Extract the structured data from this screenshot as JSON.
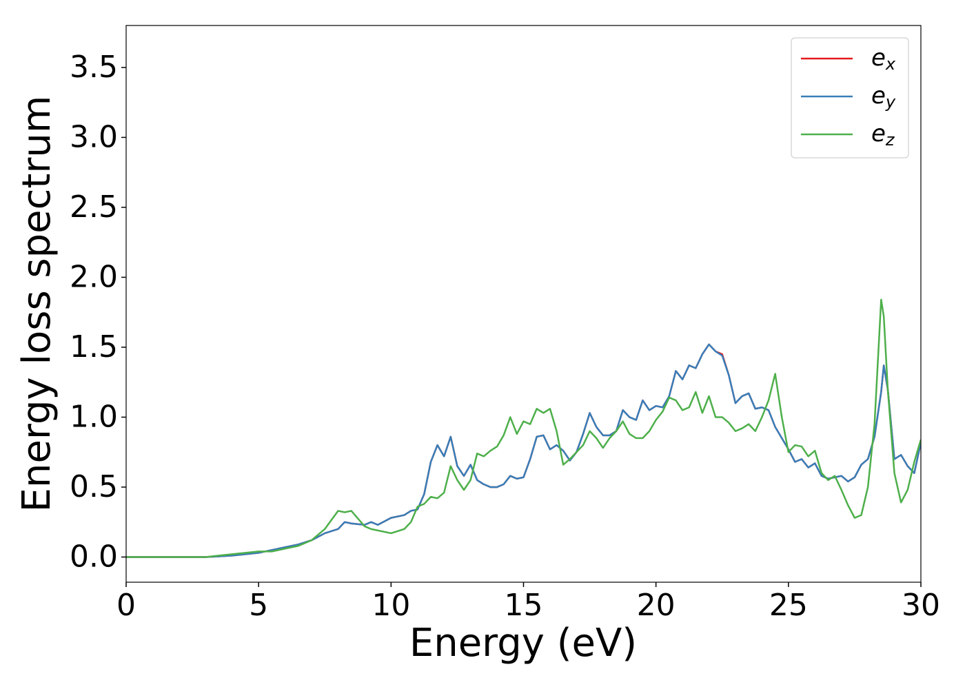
{
  "chart_data": {
    "type": "line",
    "xlabel": "Energy (eV)",
    "ylabel": "Energy loss spectrum",
    "x": [
      0,
      3,
      3.5,
      4,
      4.5,
      5,
      5.5,
      6,
      6.5,
      7,
      7.5,
      8,
      8.25,
      8.5,
      9,
      9.25,
      9.5,
      10,
      10.5,
      10.75,
      11,
      11.25,
      11.5,
      11.75,
      12,
      12.25,
      12.5,
      12.75,
      13,
      13.25,
      13.5,
      13.75,
      14,
      14.25,
      14.5,
      14.75,
      15,
      15.25,
      15.5,
      15.75,
      16,
      16.25,
      16.5,
      16.75,
      17,
      17.25,
      17.5,
      17.75,
      18,
      18.25,
      18.5,
      18.75,
      19,
      19.25,
      19.5,
      19.75,
      20,
      20.25,
      20.5,
      20.75,
      21,
      21.25,
      21.5,
      21.75,
      22,
      22.25,
      22.5,
      22.75,
      23,
      23.25,
      23.5,
      23.75,
      24,
      24.25,
      24.5,
      24.75,
      25,
      25.25,
      25.5,
      25.75,
      26,
      26.25,
      26.5,
      26.75,
      27,
      27.25,
      27.5,
      27.75,
      28,
      28.25,
      28.5,
      28.6,
      28.75,
      29,
      29.25,
      29.5,
      29.75,
      30
    ],
    "series": [
      {
        "name": "ex",
        "color": "#e41a1c",
        "values": [
          0,
          0,
          0.005,
          0.01,
          0.02,
          0.03,
          0.05,
          0.07,
          0.09,
          0.12,
          0.17,
          0.2,
          0.25,
          0.24,
          0.23,
          0.25,
          0.23,
          0.28,
          0.3,
          0.33,
          0.34,
          0.45,
          0.68,
          0.8,
          0.72,
          0.86,
          0.65,
          0.58,
          0.66,
          0.55,
          0.52,
          0.5,
          0.5,
          0.52,
          0.58,
          0.56,
          0.57,
          0.7,
          0.86,
          0.87,
          0.77,
          0.8,
          0.76,
          0.69,
          0.75,
          0.88,
          1.03,
          0.93,
          0.87,
          0.87,
          0.9,
          1.05,
          1.0,
          0.98,
          1.12,
          1.05,
          1.08,
          1.07,
          1.15,
          1.33,
          1.27,
          1.37,
          1.35,
          1.45,
          1.52,
          1.47,
          1.45,
          1.3,
          1.1,
          1.15,
          1.17,
          1.06,
          1.07,
          1.05,
          0.93,
          0.85,
          0.77,
          0.68,
          0.7,
          0.64,
          0.67,
          0.58,
          0.56,
          0.57,
          0.58,
          0.54,
          0.57,
          0.66,
          0.7,
          0.86,
          1.18,
          1.37,
          1.2,
          0.7,
          0.73,
          0.65,
          0.6,
          0.82
        ]
      },
      {
        "name": "ey",
        "color": "#377eb8",
        "values": [
          0,
          0,
          0.005,
          0.01,
          0.02,
          0.03,
          0.05,
          0.07,
          0.09,
          0.12,
          0.17,
          0.2,
          0.25,
          0.24,
          0.23,
          0.25,
          0.23,
          0.28,
          0.3,
          0.33,
          0.34,
          0.45,
          0.68,
          0.8,
          0.72,
          0.86,
          0.65,
          0.58,
          0.66,
          0.55,
          0.52,
          0.5,
          0.5,
          0.52,
          0.58,
          0.56,
          0.57,
          0.7,
          0.86,
          0.87,
          0.77,
          0.8,
          0.76,
          0.69,
          0.75,
          0.88,
          1.03,
          0.93,
          0.87,
          0.87,
          0.9,
          1.05,
          1.0,
          0.98,
          1.12,
          1.05,
          1.08,
          1.07,
          1.15,
          1.33,
          1.27,
          1.37,
          1.35,
          1.45,
          1.52,
          1.47,
          1.44,
          1.3,
          1.1,
          1.15,
          1.17,
          1.06,
          1.07,
          1.05,
          0.93,
          0.85,
          0.77,
          0.68,
          0.7,
          0.64,
          0.67,
          0.58,
          0.56,
          0.57,
          0.58,
          0.54,
          0.57,
          0.66,
          0.7,
          0.86,
          1.18,
          1.37,
          1.2,
          0.7,
          0.73,
          0.65,
          0.6,
          0.82
        ]
      },
      {
        "name": "ez",
        "color": "#4daf4a",
        "values": [
          0,
          0,
          0.01,
          0.02,
          0.03,
          0.04,
          0.04,
          0.06,
          0.08,
          0.12,
          0.2,
          0.33,
          0.32,
          0.33,
          0.22,
          0.2,
          0.19,
          0.17,
          0.2,
          0.25,
          0.36,
          0.38,
          0.43,
          0.42,
          0.46,
          0.65,
          0.55,
          0.48,
          0.55,
          0.74,
          0.72,
          0.76,
          0.79,
          0.87,
          1.0,
          0.88,
          0.97,
          0.95,
          1.06,
          1.03,
          1.06,
          0.9,
          0.66,
          0.7,
          0.75,
          0.8,
          0.9,
          0.85,
          0.78,
          0.85,
          0.9,
          0.97,
          0.88,
          0.85,
          0.85,
          0.9,
          0.98,
          1.04,
          1.14,
          1.12,
          1.05,
          1.07,
          1.18,
          1.03,
          1.15,
          1.0,
          1.0,
          0.96,
          0.9,
          0.92,
          0.95,
          0.9,
          1.0,
          1.12,
          1.31,
          1.0,
          0.75,
          0.8,
          0.79,
          0.72,
          0.76,
          0.6,
          0.55,
          0.58,
          0.48,
          0.37,
          0.28,
          0.3,
          0.5,
          0.95,
          1.84,
          1.72,
          1.2,
          0.6,
          0.39,
          0.48,
          0.68,
          0.84
        ]
      }
    ],
    "xlim": [
      0,
      30
    ],
    "xticks": [
      0,
      5,
      10,
      15,
      20,
      25,
      30
    ],
    "ylim": [
      -0.18,
      3.8
    ],
    "yticks": [
      {
        "value": 0,
        "label": "0.0"
      },
      {
        "value": 0.5,
        "label": "0.5"
      },
      {
        "value": 1,
        "label": "1.0"
      },
      {
        "value": 1.5,
        "label": "1.5"
      },
      {
        "value": 2,
        "label": "2.0"
      },
      {
        "value": 2.5,
        "label": "2.5"
      },
      {
        "value": 3,
        "label": "3.0"
      },
      {
        "value": 3.5,
        "label": "3.5"
      }
    ],
    "grid": false,
    "legend": "upper right"
  }
}
